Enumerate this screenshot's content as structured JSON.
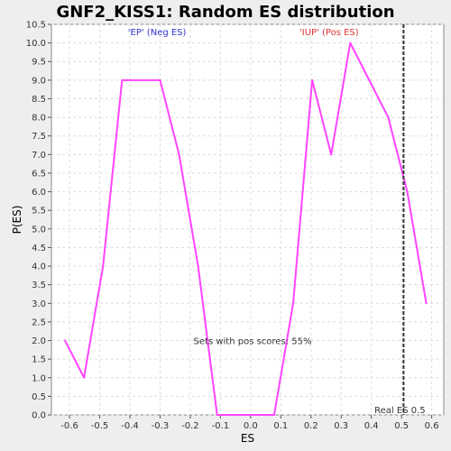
{
  "chart_data": {
    "type": "line",
    "title": "GNF2_KISS1: Random ES distribution",
    "xlabel": "ES",
    "ylabel": "P(ES)",
    "xlim": [
      -0.66,
      0.64
    ],
    "ylim": [
      0,
      10.5
    ],
    "xticks": [
      -0.6,
      -0.5,
      -0.4,
      -0.3,
      -0.2,
      -0.1,
      0.0,
      0.1,
      0.2,
      0.3,
      0.4,
      0.5,
      0.6
    ],
    "xtick_labels": [
      "-0.6",
      "-0.5",
      "-0.4",
      "-0.3",
      "-0.2",
      "-0.1",
      "0.0",
      "0.1",
      "0.2",
      "0.3",
      "0.4",
      "0.5",
      "0.6"
    ],
    "yticks": [
      0.0,
      0.5,
      1.0,
      1.5,
      2.0,
      2.5,
      3.0,
      3.5,
      4.0,
      4.5,
      5.0,
      5.5,
      6.0,
      6.5,
      7.0,
      7.5,
      8.0,
      8.5,
      9.0,
      9.5,
      10.0,
      10.5
    ],
    "ytick_labels": [
      "0.0",
      "0.5",
      "1.0",
      "1.5",
      "2.0",
      "2.5",
      "3.0",
      "3.5",
      "4.0",
      "4.5",
      "5.0",
      "5.5",
      "6.0",
      "6.5",
      "7.0",
      "7.5",
      "8.0",
      "8.5",
      "9.0",
      "9.5",
      "10.0",
      "10.5"
    ],
    "grid": true,
    "series": [
      {
        "color": "#ff44ff",
        "x": [
          -0.615,
          -0.552,
          -0.489,
          -0.426,
          -0.363,
          -0.3,
          -0.237,
          -0.174,
          -0.111,
          -0.048,
          0.015,
          0.078,
          0.141,
          0.204,
          0.267,
          0.33,
          0.393,
          0.456,
          0.519,
          0.582
        ],
        "y": [
          2.0,
          1.0,
          4.0,
          9.0,
          9.0,
          9.0,
          7.0,
          4.0,
          0.0,
          0.0,
          0.0,
          0.0,
          3.0,
          9.0,
          7.0,
          10.0,
          9.0,
          8.0,
          6.0,
          3.0
        ]
      }
    ],
    "real_es": 0.5067,
    "real_es_label": "Real ES 0.5",
    "annotations": {
      "neg_label": "'EP' (Neg ES)",
      "neg_color": "#3333cc",
      "pos_label": "'IUP' (Pos ES)",
      "pos_color": "#dd3333",
      "pos_scores_text": "Sets with pos scores: 55%"
    }
  }
}
